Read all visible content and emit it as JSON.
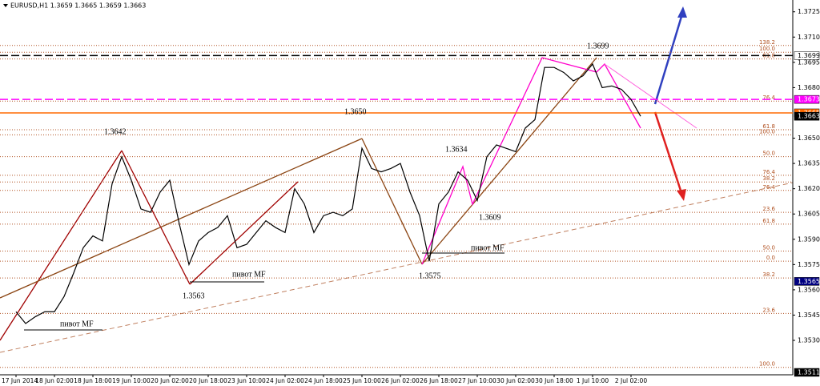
{
  "chart_data": {
    "type": "line",
    "title": "EURUSD,H1  1.3659 1.3665 1.3659 1.3663",
    "color": "#000000",
    "categories": [
      "17 Jun 2014",
      null,
      null,
      null,
      "18 Jun 02:00",
      null,
      null,
      null,
      "18 Jun 18:00",
      null,
      null,
      null,
      "19 Jun 10:00",
      null,
      null,
      null,
      "20 Jun 02:00",
      null,
      null,
      null,
      "20 Jun 18:00",
      null,
      null,
      null,
      "23 Jun 10:00",
      null,
      null,
      null,
      "24 Jun 02:00",
      null,
      null,
      null,
      "24 Jun 18:00",
      null,
      null,
      null,
      "25 Jun 10:00",
      null,
      null,
      null,
      "26 Jun 02:00",
      null,
      null,
      null,
      "26 Jun 18:00",
      null,
      null,
      null,
      "27 Jun 10:00",
      null,
      null,
      null,
      "30 Jun 02:00",
      null,
      null,
      null,
      "30 Jun 18:00",
      null,
      null,
      null,
      "1 Jul 10:00",
      null,
      null,
      null,
      "2 Jul 02:00",
      null
    ],
    "values": [
      1.3547,
      1.354,
      1.3544,
      1.3547,
      1.3547,
      1.3556,
      1.357,
      1.3585,
      1.3592,
      1.3589,
      1.3623,
      1.3639,
      1.3625,
      1.3608,
      1.3606,
      1.3618,
      1.3625,
      1.3599,
      1.3575,
      1.3589,
      1.3594,
      1.3597,
      1.3604,
      1.3585,
      1.3587,
      1.3594,
      1.3601,
      1.3597,
      1.3594,
      1.362,
      1.3611,
      1.3594,
      1.3604,
      1.3606,
      1.3604,
      1.3608,
      1.3644,
      1.3632,
      1.363,
      1.3632,
      1.3635,
      1.3618,
      1.3604,
      1.3577,
      1.3611,
      1.3618,
      1.363,
      1.3625,
      1.3613,
      1.3639,
      1.3646,
      1.3644,
      1.3642,
      1.3656,
      1.3661,
      1.3692,
      1.3692,
      1.3689,
      1.3684,
      1.3687,
      1.3694,
      1.368,
      1.3681,
      1.3679,
      1.3673,
      1.3663
    ],
    "ylim": [
      1.3511,
      1.3732
    ],
    "yticks": [
      {
        "value": 1.3725,
        "label": "1.3725"
      },
      {
        "value": 1.371,
        "label": "1.3710"
      },
      {
        "value": 1.3695,
        "label": "1.3695"
      },
      {
        "value": 1.368,
        "label": "1.3680"
      },
      {
        "value": 1.365,
        "label": "1.3650"
      },
      {
        "value": 1.3635,
        "label": "1.3635"
      },
      {
        "value": 1.362,
        "label": "1.3620"
      },
      {
        "value": 1.3605,
        "label": "1.3605"
      },
      {
        "value": 1.359,
        "label": "1.3590"
      },
      {
        "value": 1.3575,
        "label": "1.3575"
      },
      {
        "value": 1.356,
        "label": "1.3560"
      },
      {
        "value": 1.3545,
        "label": "1.3545"
      },
      {
        "value": 1.353,
        "label": "1.3530"
      }
    ],
    "price_labels": [
      {
        "value": 1.3699,
        "label": "1.3699",
        "color": "#ffffff"
      },
      {
        "value": 1.3673,
        "label": "1.3673",
        "color": "#ff00ff"
      },
      {
        "value": 1.3665,
        "label": "1.3665",
        "color": "#ff6a00"
      },
      {
        "value": 1.3663,
        "label": "1.3663",
        "color": "#000000"
      },
      {
        "value": 1.3565,
        "label": "1.3565",
        "color": "#000080"
      },
      {
        "value": 1.3511,
        "label": "1.3511",
        "color": "#000000"
      }
    ],
    "fib_levels": [
      {
        "value": 1.3705,
        "label": "138.2"
      },
      {
        "value": 1.3701,
        "label": "100.0"
      },
      {
        "value": 1.3697,
        "label": "61.8"
      },
      {
        "value": 1.3672,
        "label": "76.4"
      },
      {
        "value": 1.3655,
        "label": "61.8"
      },
      {
        "value": 1.3652,
        "label": "100.0"
      },
      {
        "value": 1.3639,
        "label": "50.0"
      },
      {
        "value": 1.3628,
        "label": "76.4"
      },
      {
        "value": 1.3624,
        "label": "38.2"
      },
      {
        "value": 1.3619,
        "label": "76.4"
      },
      {
        "value": 1.3606,
        "label": "23.6"
      },
      {
        "value": 1.3599,
        "label": "61.8"
      },
      {
        "value": 1.3583,
        "label": "50.0"
      },
      {
        "value": 1.3577,
        "label": "0.0"
      },
      {
        "value": 1.3567,
        "label": "38.2"
      },
      {
        "value": 1.3546,
        "label": "23.6"
      },
      {
        "value": 1.3514,
        "label": "100.0"
      }
    ],
    "annotations": [
      "1.3642",
      "1.3563",
      "1.3650",
      "1.3575",
      "1.3634",
      "1.3609",
      "1.3699",
      "пивот MF",
      "пивот MF",
      "пивот MF"
    ]
  }
}
